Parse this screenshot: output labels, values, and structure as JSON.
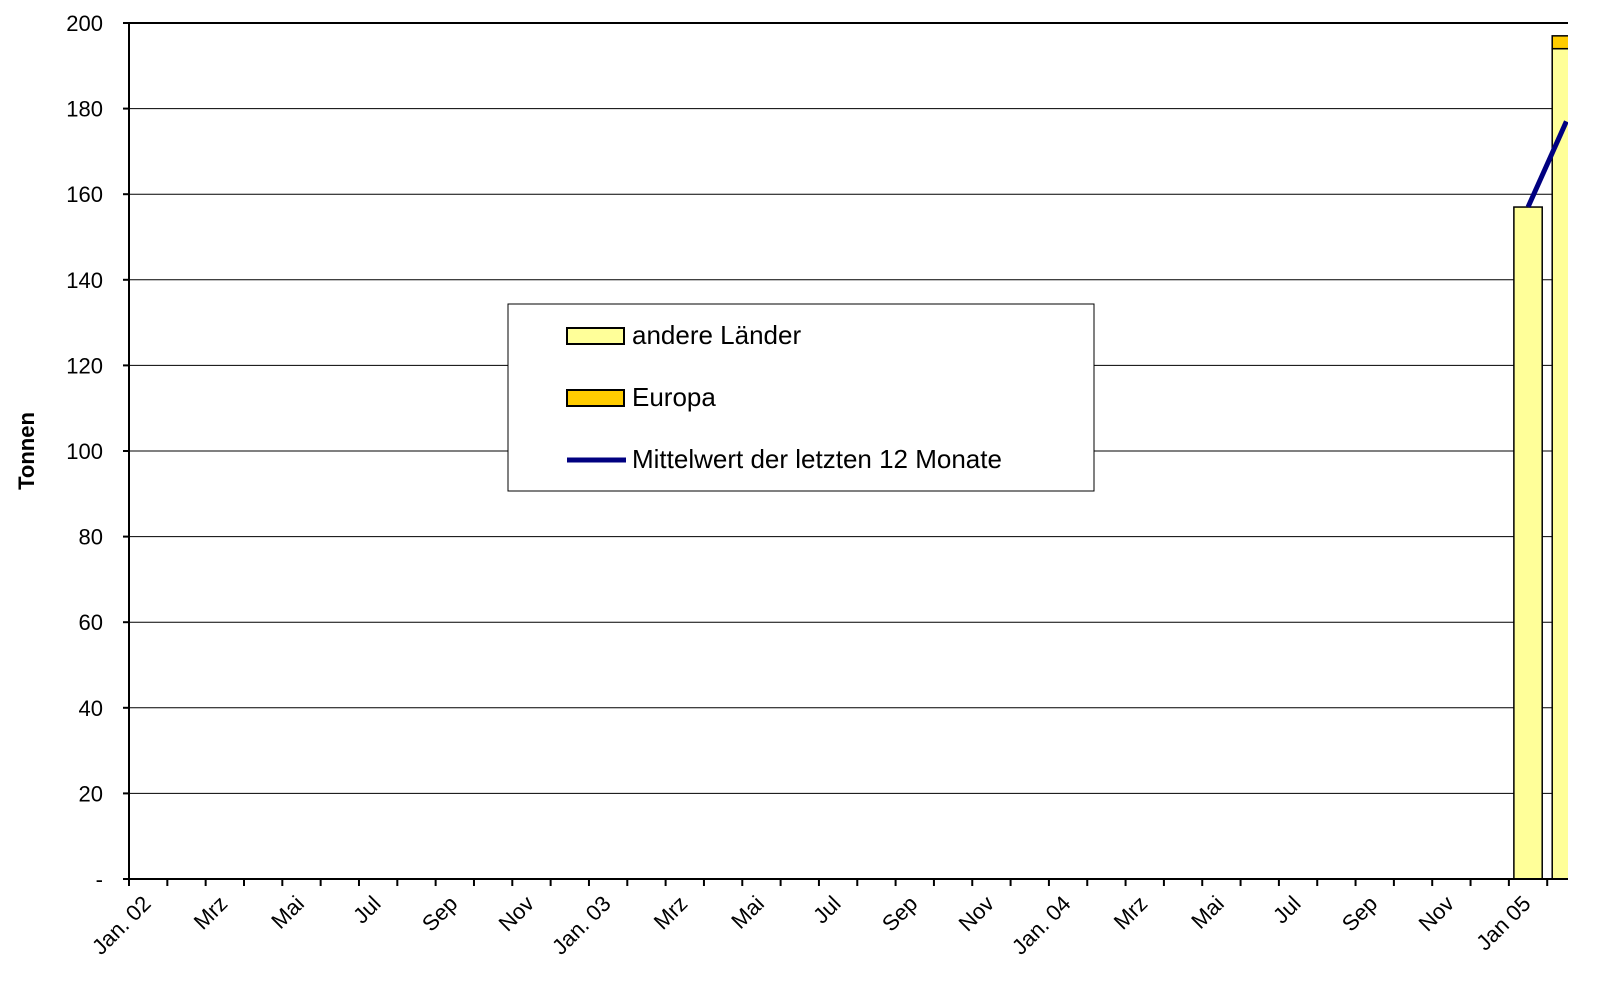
{
  "chart_data": {
    "type": "bar",
    "y_label": "Tonnen",
    "categories": [
      "Jan. 02",
      null,
      "Mrz",
      null,
      "Mai",
      null,
      "Jul",
      null,
      "Sep",
      null,
      "Nov",
      null,
      "Jan. 03",
      null,
      "Mrz",
      null,
      "Mai",
      null,
      "Jul",
      null,
      "Sep",
      null,
      "Nov",
      null,
      "Jan. 04",
      null,
      "Mrz",
      null,
      "Mai",
      null,
      "Jul",
      null,
      "Sep",
      null,
      "Nov",
      null,
      "Jan 05",
      null
    ],
    "series": [
      {
        "name": "andere Länder",
        "type": "bar",
        "color": "#ffff99",
        "values": [
          null,
          null,
          null,
          null,
          null,
          null,
          null,
          null,
          null,
          null,
          null,
          null,
          null,
          null,
          null,
          null,
          null,
          null,
          null,
          null,
          null,
          null,
          null,
          null,
          null,
          null,
          null,
          null,
          null,
          null,
          null,
          null,
          null,
          null,
          null,
          null,
          157,
          194
        ]
      },
      {
        "name": "Europa",
        "type": "bar",
        "color": "#ffcc00",
        "values": [
          null,
          null,
          null,
          null,
          null,
          null,
          null,
          null,
          null,
          null,
          null,
          null,
          null,
          null,
          null,
          null,
          null,
          null,
          null,
          null,
          null,
          null,
          null,
          null,
          null,
          null,
          null,
          null,
          null,
          null,
          null,
          null,
          null,
          null,
          null,
          null,
          0,
          3
        ]
      },
      {
        "name": "Mittelwert der letzten 12 Monate",
        "type": "line",
        "color": "#000080",
        "values": [
          null,
          null,
          null,
          null,
          null,
          null,
          null,
          null,
          null,
          null,
          null,
          null,
          null,
          null,
          null,
          null,
          null,
          null,
          null,
          null,
          null,
          null,
          null,
          null,
          null,
          null,
          null,
          null,
          null,
          null,
          null,
          null,
          null,
          null,
          null,
          null,
          157,
          177
        ]
      }
    ],
    "ylim": [
      0,
      200
    ],
    "yticks": [
      {
        "value": 0,
        "label": "-"
      },
      20,
      40,
      60,
      80,
      100,
      120,
      140,
      160,
      180,
      200
    ],
    "grid": true
  }
}
